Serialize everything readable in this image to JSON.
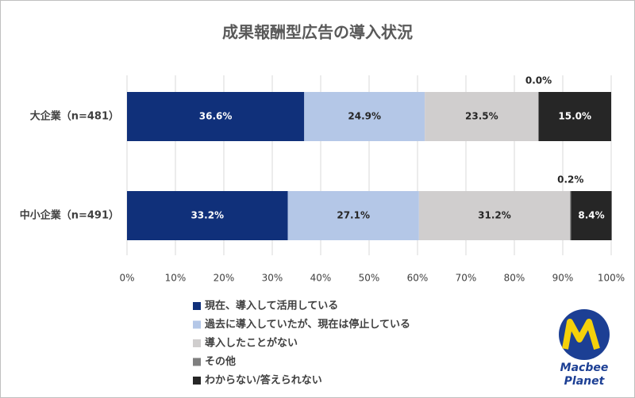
{
  "chart_data": {
    "type": "stacked-bar-horizontal",
    "title": "成果報酬型広告の導入状況",
    "categories": [
      "大企業（n=481）",
      "中小企業（n=491）"
    ],
    "series": [
      {
        "name": "現在、導入して活用している",
        "color": "#10307a",
        "values": [
          36.6,
          33.2
        ],
        "value_labels": [
          "36.6%",
          "33.2%"
        ]
      },
      {
        "name": "過去に導入していたが、現在は停止している",
        "color": "#b4c7e7",
        "values": [
          24.9,
          27.1
        ],
        "value_labels": [
          "24.9%",
          "27.1%"
        ]
      },
      {
        "name": "導入したことがない",
        "color": "#d0cece",
        "values": [
          23.5,
          31.2
        ],
        "value_labels": [
          "23.5%",
          "31.2%"
        ]
      },
      {
        "name": "その他",
        "color": "#7f7f7f",
        "values": [
          0.0,
          0.2
        ],
        "value_labels": [
          "0.0%",
          "0.2%"
        ]
      },
      {
        "name": "わからない/答えられない",
        "color": "#262626",
        "values": [
          15.0,
          8.4
        ],
        "value_labels": [
          "15.0%",
          "8.4%"
        ]
      }
    ],
    "xlim": [
      0,
      100
    ],
    "xticks": [
      {
        "value": 0,
        "label": "0%"
      },
      {
        "value": 10,
        "label": "10%"
      },
      {
        "value": 20,
        "label": "20%"
      },
      {
        "value": 30,
        "label": "30%"
      },
      {
        "value": 40,
        "label": "40%"
      },
      {
        "value": 50,
        "label": "50%"
      },
      {
        "value": 60,
        "label": "60%"
      },
      {
        "value": 70,
        "label": "70%"
      },
      {
        "value": 80,
        "label": "80%"
      },
      {
        "value": 90,
        "label": "90%"
      },
      {
        "value": 100,
        "label": "100%"
      }
    ],
    "grid": true
  },
  "logo": {
    "line1": "Macbee",
    "line2": "Planet"
  }
}
